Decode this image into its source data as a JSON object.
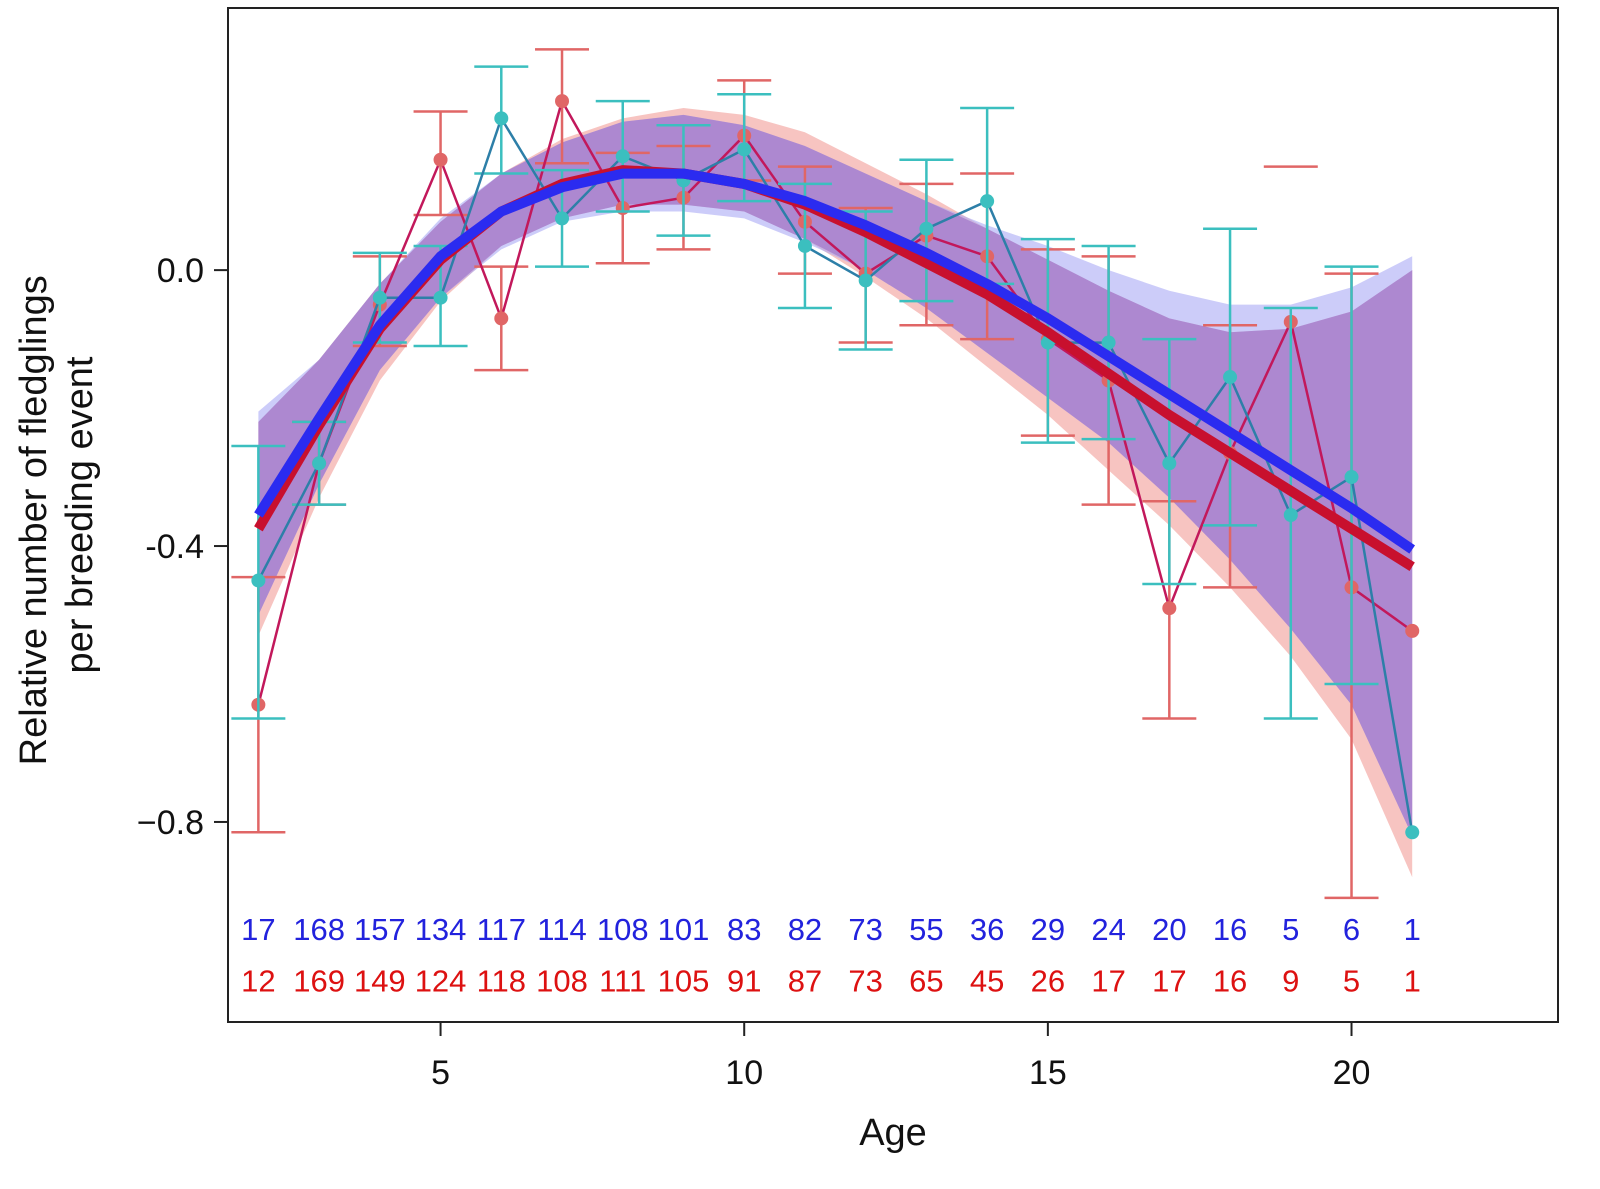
{
  "chart_data": {
    "type": "line",
    "title": "",
    "xlabel": "Age",
    "ylabel_lines": [
      "Relative number of fledglings",
      "per breeding event"
    ],
    "xlim": [
      1.5,
      23.4
    ],
    "ylim": [
      -1.09,
      0.38
    ],
    "x_ticks": [
      {
        "value": 5,
        "label": "5"
      },
      {
        "value": 10,
        "label": "10"
      },
      {
        "value": 15,
        "label": "15"
      },
      {
        "value": 20,
        "label": "20"
      }
    ],
    "y_ticks": [
      {
        "value": 0.0,
        "label": "0.0"
      },
      {
        "value": -0.4,
        "label": "-0.4"
      },
      {
        "value": -0.8,
        "label": "−0.8"
      }
    ],
    "ages": [
      2,
      3,
      4,
      5,
      6,
      7,
      8,
      9,
      10,
      11,
      12,
      13,
      14,
      15,
      16,
      17,
      18,
      19,
      20,
      21
    ],
    "colors": {
      "red_points": "#e06666",
      "teal_points": "#3bbfbf",
      "teal_line": "#2d7fa8",
      "red_line": "#c2185b",
      "red_fit": "#c8102e",
      "blue_fit": "#2b2bf0",
      "red_band": "#f4b0ac",
      "blue_band": "#aaaaf5",
      "overlap_band": "#a880cc",
      "blue_counts": "#2222dd",
      "red_counts": "#dd1111"
    },
    "series": [
      {
        "key": "red_obs",
        "y": [
          -0.63,
          -0.28,
          -0.05,
          0.16,
          -0.07,
          0.245,
          0.09,
          0.105,
          0.195,
          0.07,
          -0.005,
          0.05,
          0.02,
          -0.1,
          -0.16,
          -0.49,
          -0.265,
          -0.075,
          -0.46,
          -0.523
        ],
        "ci_low": [
          -0.815,
          -0.34,
          -0.11,
          0.08,
          -0.145,
          0.155,
          0.01,
          0.03,
          0.13,
          -0.005,
          -0.105,
          -0.08,
          -0.1,
          -0.24,
          -0.34,
          -0.65,
          -0.46,
          null,
          -0.91,
          null
        ],
        "ci_high": [
          -0.445,
          -0.22,
          0.02,
          0.23,
          0.005,
          0.32,
          0.17,
          0.18,
          0.275,
          0.15,
          0.09,
          0.125,
          0.14,
          0.03,
          0.02,
          -0.335,
          -0.08,
          0.15,
          -0.005,
          null
        ]
      },
      {
        "key": "teal_obs",
        "y": [
          -0.45,
          -0.28,
          -0.04,
          -0.04,
          0.22,
          0.075,
          0.165,
          0.13,
          0.175,
          0.035,
          -0.015,
          0.06,
          0.1,
          -0.105,
          -0.105,
          -0.28,
          -0.155,
          -0.355,
          -0.3,
          -0.815
        ],
        "ci_low": [
          -0.65,
          -0.34,
          -0.105,
          -0.11,
          0.14,
          0.005,
          0.085,
          0.05,
          0.1,
          -0.055,
          -0.115,
          -0.045,
          -0.02,
          -0.25,
          -0.245,
          -0.455,
          -0.37,
          -0.65,
          -0.6,
          null
        ],
        "ci_high": [
          -0.255,
          -0.22,
          0.025,
          0.035,
          0.295,
          0.145,
          0.245,
          0.21,
          0.255,
          0.125,
          0.085,
          0.16,
          0.235,
          0.045,
          0.035,
          -0.1,
          0.06,
          -0.055,
          0.005,
          null
        ]
      },
      {
        "key": "red_fit",
        "y": [
          -0.375,
          -0.225,
          -0.085,
          0.015,
          0.085,
          0.125,
          0.145,
          0.14,
          0.125,
          0.095,
          0.055,
          0.01,
          -0.035,
          -0.09,
          -0.15,
          -0.21,
          -0.265,
          -0.32,
          -0.375,
          -0.43
        ],
        "ci_low": [
          -0.53,
          -0.33,
          -0.16,
          -0.045,
          0.035,
          0.075,
          0.095,
          0.095,
          0.085,
          0.045,
          -0.01,
          -0.07,
          -0.14,
          -0.21,
          -0.29,
          -0.37,
          -0.46,
          -0.56,
          -0.68,
          -0.88
        ],
        "ci_high": [
          -0.22,
          -0.13,
          -0.02,
          0.07,
          0.14,
          0.19,
          0.22,
          0.235,
          0.225,
          0.2,
          0.155,
          0.11,
          0.06,
          0.015,
          -0.03,
          -0.07,
          -0.09,
          -0.085,
          -0.06,
          0.0
        ]
      },
      {
        "key": "blue_fit",
        "y": [
          -0.355,
          -0.215,
          -0.08,
          0.02,
          0.085,
          0.12,
          0.14,
          0.14,
          0.125,
          0.1,
          0.065,
          0.025,
          -0.02,
          -0.07,
          -0.125,
          -0.18,
          -0.235,
          -0.29,
          -0.345,
          -0.405
        ],
        "ci_low": [
          -0.5,
          -0.31,
          -0.145,
          -0.04,
          0.03,
          0.07,
          0.085,
          0.085,
          0.075,
          0.04,
          0.0,
          -0.055,
          -0.12,
          -0.185,
          -0.25,
          -0.33,
          -0.42,
          -0.52,
          -0.63,
          -0.82
        ],
        "ci_high": [
          -0.205,
          -0.13,
          -0.02,
          0.075,
          0.14,
          0.185,
          0.215,
          0.225,
          0.21,
          0.18,
          0.14,
          0.1,
          0.065,
          0.035,
          0.0,
          -0.03,
          -0.05,
          -0.05,
          -0.025,
          0.02
        ]
      }
    ],
    "counts_blue": [
      "17",
      "168",
      "157",
      "134",
      "117",
      "114",
      "108",
      "101",
      "83",
      "82",
      "73",
      "55",
      "36",
      "29",
      "24",
      "20",
      "16",
      "5",
      "6",
      "1"
    ],
    "counts_red": [
      "12",
      "169",
      "149",
      "124",
      "118",
      "108",
      "111",
      "105",
      "91",
      "87",
      "73",
      "65",
      "45",
      "26",
      "17",
      "17",
      "16",
      "9",
      "5",
      "1"
    ],
    "counts_y": {
      "blue": -0.955,
      "red": -1.03
    },
    "grid": false,
    "legend": "none"
  }
}
